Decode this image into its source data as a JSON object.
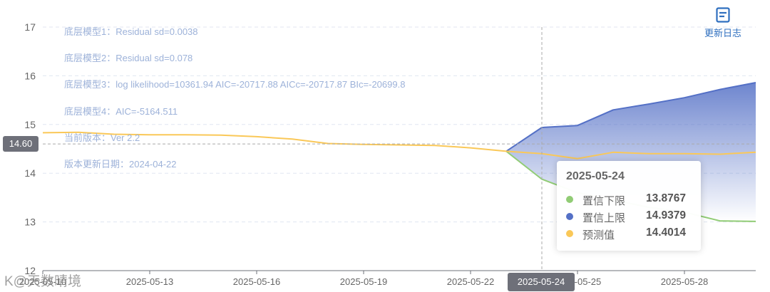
{
  "chart_data": {
    "type": "area",
    "x": [
      "2025-05-10",
      "2025-05-11",
      "2025-05-12",
      "2025-05-13",
      "2025-05-14",
      "2025-05-15",
      "2025-05-16",
      "2025-05-17",
      "2025-05-18",
      "2025-05-19",
      "2025-05-20",
      "2025-05-21",
      "2025-05-22",
      "2025-05-23",
      "2025-05-24",
      "2025-05-25",
      "2025-05-26",
      "2025-05-27",
      "2025-05-28",
      "2025-05-29",
      "2025-05-30"
    ],
    "xticks": [
      "2025-05-10",
      "2025-05-13",
      "2025-05-16",
      "2025-05-19",
      "2025-05-22",
      "2025-05-25",
      "2025-05-28"
    ],
    "series": [
      {
        "name": "置信下限",
        "color": "#91cc75",
        "values": [
          null,
          null,
          null,
          null,
          null,
          null,
          null,
          null,
          null,
          null,
          null,
          null,
          null,
          14.45,
          13.8767,
          13.6,
          13.45,
          13.3,
          13.2,
          13.02,
          13.01
        ]
      },
      {
        "name": "置信上限",
        "color": "#5470c6",
        "values": [
          null,
          null,
          null,
          null,
          null,
          null,
          null,
          null,
          null,
          null,
          null,
          null,
          null,
          14.45,
          14.9379,
          14.98,
          15.3,
          15.42,
          15.55,
          15.72,
          15.86
        ]
      },
      {
        "name": "预测值",
        "color": "#fac858",
        "values": [
          14.83,
          14.84,
          14.8,
          14.79,
          14.79,
          14.78,
          14.75,
          14.7,
          14.61,
          14.59,
          14.58,
          14.57,
          14.52,
          14.45,
          14.4014,
          14.3,
          14.43,
          14.4,
          14.4,
          14.39,
          14.43
        ]
      }
    ],
    "ylim": [
      12,
      17
    ],
    "yticks": [
      12,
      13,
      14,
      15,
      16,
      17
    ],
    "axis_pointer": {
      "y_value": "14.60",
      "x_value": "2025-05-24"
    },
    "tooltip": {
      "title": "2025-05-24",
      "rows": [
        {
          "name": "置信下限",
          "value": "13.8767",
          "color": "#91cc75"
        },
        {
          "name": "置信上限",
          "value": "14.9379",
          "color": "#5470c6"
        },
        {
          "name": "预测值",
          "value": "14.4014",
          "color": "#fac858"
        }
      ]
    },
    "annotations": [
      "底层模型1：Residual sd=0.0038",
      "底层模型2：Residual sd=0.078",
      "底层模型3：log likelihood=10361.94 AIC=-20717.88 AICc=-20717.87 BIc=-20699.8",
      "底层模型4：AIC=-5164.511",
      "当前版本：Ver 2.2",
      "版本更新日期：2024-04-22"
    ],
    "grid": true
  },
  "toolbar": {
    "update_log_label": "更新日志",
    "update_log_icon": "document-icon"
  },
  "watermark": "K@天数晴境"
}
